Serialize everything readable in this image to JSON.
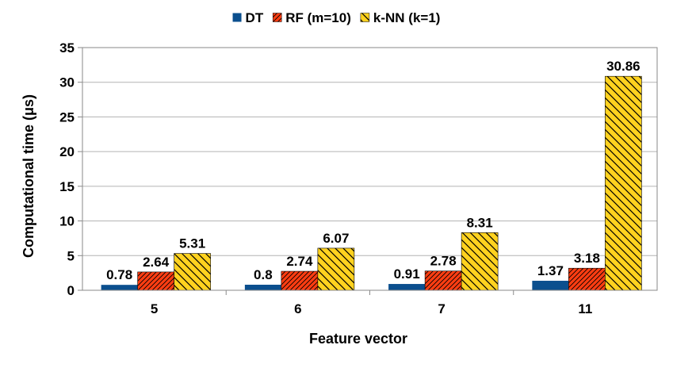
{
  "chart_data": {
    "type": "bar",
    "title": "",
    "xlabel": "Feature vector",
    "ylabel": "Computational time (μs)",
    "ylim": [
      0,
      35
    ],
    "yticks": [
      0,
      5,
      10,
      15,
      20,
      25,
      30,
      35
    ],
    "grid": true,
    "legend_position": "top",
    "categories": [
      "5",
      "6",
      "7",
      "11"
    ],
    "series": [
      {
        "name": "DT",
        "values": [
          0.78,
          0.8,
          0.91,
          1.37
        ],
        "labels": [
          "0.78",
          "0.8",
          "0.91",
          "1.37"
        ],
        "color": "#0b4f8e",
        "pattern": "solid"
      },
      {
        "name": "RF (m=10)",
        "values": [
          2.64,
          2.74,
          2.78,
          3.18
        ],
        "labels": [
          "2.64",
          "2.74",
          "2.78",
          "3.18"
        ],
        "color": "#ff3d12",
        "pattern": "hatch-fine"
      },
      {
        "name": "k-NN (k=1)",
        "values": [
          5.31,
          6.07,
          8.31,
          30.86
        ],
        "labels": [
          "5.31",
          "6.07",
          "8.31",
          "30.86"
        ],
        "color": "#ffd21f",
        "pattern": "hatch-wide"
      }
    ]
  }
}
